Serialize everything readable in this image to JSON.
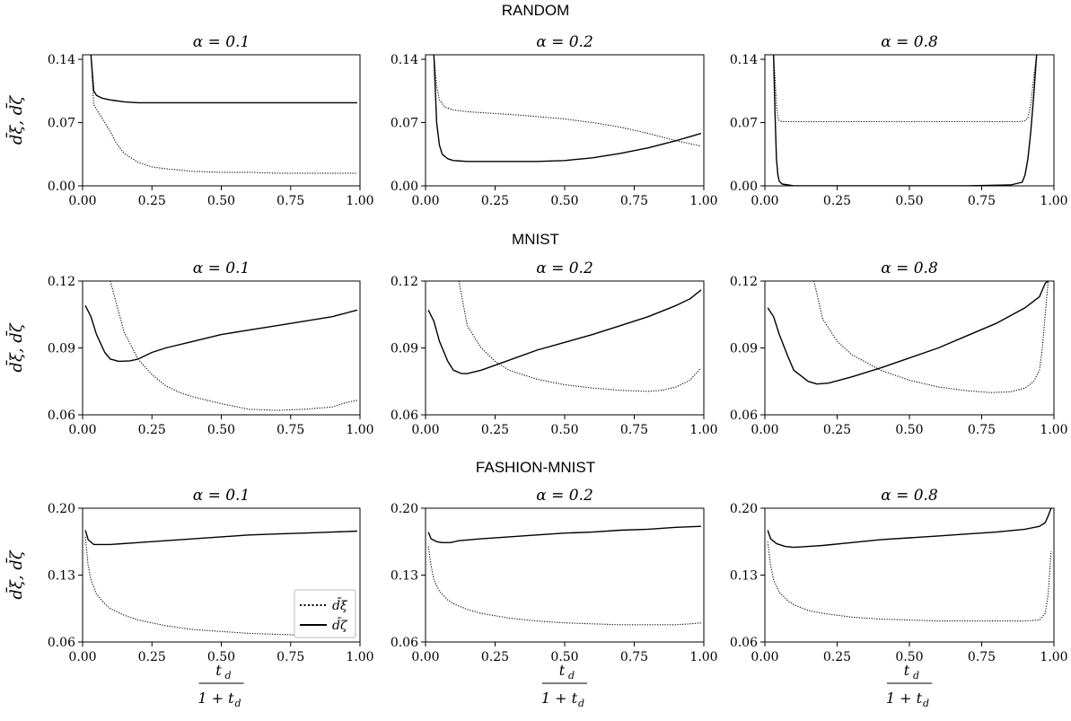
{
  "row_titles": [
    "RANDOM",
    "MNIST",
    "FASHION-MNIST"
  ],
  "ylabel": "d̄ξ, d̄ζ",
  "xlabel": {
    "numerator": "t",
    "numerator_sub": "d",
    "denominator": "1 + t",
    "denominator_sub": "d"
  },
  "legend": {
    "dotted": "d̄ξ",
    "solid": "d̄ζ"
  },
  "chart_data": [
    {
      "type": "line",
      "row": "RANDOM",
      "title": "α = 0.1",
      "xlim": [
        0,
        1
      ],
      "ylim": [
        0,
        0.145
      ],
      "xticks": [
        "0.00",
        "0.25",
        "0.50",
        "0.75",
        "1.00"
      ],
      "yticks": [
        "0.00",
        "0.07",
        "0.14"
      ],
      "series": [
        {
          "name": "d̄ξ",
          "style": "dotted",
          "x": [
            0.03,
            0.04,
            0.06,
            0.08,
            0.1,
            0.12,
            0.15,
            0.2,
            0.25,
            0.3,
            0.4,
            0.5,
            0.6,
            0.7,
            0.8,
            0.9,
            0.99
          ],
          "y": [
            0.145,
            0.09,
            0.08,
            0.07,
            0.06,
            0.048,
            0.036,
            0.026,
            0.021,
            0.019,
            0.016,
            0.015,
            0.015,
            0.014,
            0.014,
            0.014,
            0.014
          ]
        },
        {
          "name": "d̄ζ",
          "style": "solid",
          "x": [
            0.03,
            0.04,
            0.05,
            0.07,
            0.1,
            0.15,
            0.2,
            0.3,
            0.5,
            0.7,
            0.99
          ],
          "y": [
            0.145,
            0.105,
            0.1,
            0.097,
            0.095,
            0.093,
            0.092,
            0.092,
            0.092,
            0.092,
            0.092
          ]
        }
      ]
    },
    {
      "type": "line",
      "row": "RANDOM",
      "title": "α = 0.2",
      "xlim": [
        0,
        1
      ],
      "ylim": [
        0,
        0.145
      ],
      "xticks": [
        "0.00",
        "0.25",
        "0.50",
        "0.75",
        "1.00"
      ],
      "yticks": [
        "0.00",
        "0.07",
        "0.14"
      ],
      "series": [
        {
          "name": "d̄ξ",
          "style": "dotted",
          "x": [
            0.03,
            0.04,
            0.05,
            0.07,
            0.1,
            0.15,
            0.25,
            0.35,
            0.5,
            0.6,
            0.7,
            0.8,
            0.9,
            0.99
          ],
          "y": [
            0.145,
            0.11,
            0.095,
            0.087,
            0.084,
            0.082,
            0.08,
            0.078,
            0.074,
            0.07,
            0.065,
            0.058,
            0.05,
            0.044
          ]
        },
        {
          "name": "d̄ζ",
          "style": "solid",
          "x": [
            0.03,
            0.04,
            0.05,
            0.06,
            0.08,
            0.1,
            0.15,
            0.25,
            0.4,
            0.5,
            0.6,
            0.7,
            0.8,
            0.9,
            0.99
          ],
          "y": [
            0.145,
            0.07,
            0.045,
            0.035,
            0.03,
            0.028,
            0.027,
            0.027,
            0.027,
            0.028,
            0.031,
            0.036,
            0.042,
            0.05,
            0.058
          ]
        }
      ]
    },
    {
      "type": "line",
      "row": "RANDOM",
      "title": "α = 0.8",
      "xlim": [
        0,
        1
      ],
      "ylim": [
        0,
        0.145
      ],
      "xticks": [
        "0.00",
        "0.25",
        "0.50",
        "0.75",
        "1.00"
      ],
      "yticks": [
        "0.00",
        "0.07",
        "0.14"
      ],
      "series": [
        {
          "name": "d̄ξ",
          "style": "dotted",
          "x": [
            0.03,
            0.035,
            0.04,
            0.045,
            0.05,
            0.06,
            0.1,
            0.2,
            0.4,
            0.6,
            0.8,
            0.88,
            0.9,
            0.91,
            0.92,
            0.93,
            0.94
          ],
          "y": [
            0.145,
            0.12,
            0.09,
            0.075,
            0.072,
            0.071,
            0.071,
            0.071,
            0.071,
            0.071,
            0.071,
            0.071,
            0.072,
            0.075,
            0.09,
            0.12,
            0.145
          ]
        },
        {
          "name": "d̄ζ",
          "style": "solid",
          "x": [
            0.03,
            0.035,
            0.04,
            0.045,
            0.05,
            0.06,
            0.08,
            0.1,
            0.3,
            0.5,
            0.7,
            0.85,
            0.89,
            0.9,
            0.91,
            0.92,
            0.93,
            0.94
          ],
          "y": [
            0.145,
            0.08,
            0.03,
            0.012,
            0.005,
            0.002,
            0.001,
            0,
            0,
            0,
            0,
            0.001,
            0.004,
            0.012,
            0.03,
            0.06,
            0.1,
            0.145
          ]
        }
      ]
    },
    {
      "type": "line",
      "row": "MNIST",
      "title": "α = 0.1",
      "xlim": [
        0,
        1
      ],
      "ylim": [
        0.06,
        0.12
      ],
      "xticks": [
        "0.00",
        "0.25",
        "0.50",
        "0.75",
        "1.00"
      ],
      "yticks": [
        "0.06",
        "0.09",
        "0.12"
      ],
      "series": [
        {
          "name": "d̄ξ",
          "style": "dotted",
          "x": [
            0.1,
            0.15,
            0.2,
            0.25,
            0.3,
            0.35,
            0.4,
            0.5,
            0.6,
            0.7,
            0.8,
            0.9,
            0.95,
            0.99
          ],
          "y": [
            0.12,
            0.097,
            0.085,
            0.078,
            0.073,
            0.07,
            0.068,
            0.065,
            0.0625,
            0.062,
            0.0625,
            0.0635,
            0.0655,
            0.0665
          ]
        },
        {
          "name": "d̄ζ",
          "style": "solid",
          "x": [
            0.01,
            0.03,
            0.05,
            0.08,
            0.1,
            0.13,
            0.17,
            0.2,
            0.25,
            0.3,
            0.4,
            0.5,
            0.6,
            0.7,
            0.8,
            0.9,
            0.99
          ],
          "y": [
            0.109,
            0.104,
            0.096,
            0.088,
            0.085,
            0.084,
            0.0842,
            0.085,
            0.088,
            0.09,
            0.093,
            0.096,
            0.098,
            0.1,
            0.102,
            0.104,
            0.107
          ]
        }
      ]
    },
    {
      "type": "line",
      "row": "MNIST",
      "title": "α = 0.2",
      "xlim": [
        0,
        1
      ],
      "ylim": [
        0.06,
        0.12
      ],
      "xticks": [
        "0.00",
        "0.25",
        "0.50",
        "0.75",
        "1.00"
      ],
      "yticks": [
        "0.06",
        "0.09",
        "0.12"
      ],
      "series": [
        {
          "name": "d̄ξ",
          "style": "dotted",
          "x": [
            0.12,
            0.15,
            0.2,
            0.25,
            0.3,
            0.4,
            0.5,
            0.6,
            0.7,
            0.8,
            0.85,
            0.9,
            0.95,
            0.99
          ],
          "y": [
            0.12,
            0.1,
            0.09,
            0.084,
            0.08,
            0.076,
            0.0735,
            0.072,
            0.071,
            0.0705,
            0.071,
            0.0725,
            0.0755,
            0.081
          ]
        },
        {
          "name": "d̄ζ",
          "style": "solid",
          "x": [
            0.01,
            0.03,
            0.05,
            0.08,
            0.1,
            0.13,
            0.15,
            0.2,
            0.3,
            0.4,
            0.5,
            0.6,
            0.7,
            0.8,
            0.9,
            0.95,
            0.99
          ],
          "y": [
            0.107,
            0.102,
            0.093,
            0.084,
            0.08,
            0.0785,
            0.0785,
            0.08,
            0.0845,
            0.089,
            0.0925,
            0.096,
            0.1,
            0.104,
            0.109,
            0.112,
            0.116
          ]
        }
      ]
    },
    {
      "type": "line",
      "row": "MNIST",
      "title": "α = 0.8",
      "xlim": [
        0,
        1
      ],
      "ylim": [
        0.06,
        0.12
      ],
      "xticks": [
        "0.00",
        "0.25",
        "0.50",
        "0.75",
        "1.00"
      ],
      "yticks": [
        "0.06",
        "0.09",
        "0.12"
      ],
      "series": [
        {
          "name": "d̄ξ",
          "style": "dotted",
          "x": [
            0.17,
            0.2,
            0.25,
            0.3,
            0.4,
            0.5,
            0.6,
            0.7,
            0.78,
            0.85,
            0.9,
            0.93,
            0.95,
            0.96,
            0.97,
            0.98
          ],
          "y": [
            0.12,
            0.103,
            0.093,
            0.087,
            0.08,
            0.0755,
            0.0725,
            0.0708,
            0.07,
            0.0703,
            0.072,
            0.075,
            0.08,
            0.09,
            0.105,
            0.12
          ]
        },
        {
          "name": "d̄ζ",
          "style": "solid",
          "x": [
            0.01,
            0.03,
            0.05,
            0.08,
            0.1,
            0.15,
            0.18,
            0.22,
            0.3,
            0.4,
            0.5,
            0.6,
            0.7,
            0.8,
            0.9,
            0.95,
            0.97,
            0.98
          ],
          "y": [
            0.108,
            0.104,
            0.096,
            0.086,
            0.08,
            0.075,
            0.0738,
            0.0742,
            0.077,
            0.081,
            0.0855,
            0.09,
            0.0955,
            0.101,
            0.108,
            0.113,
            0.119,
            0.12
          ]
        }
      ]
    },
    {
      "type": "line",
      "row": "FASHION-MNIST",
      "title": "α = 0.1",
      "xlim": [
        0,
        1
      ],
      "ylim": [
        0.06,
        0.2
      ],
      "xticks": [
        "0.00",
        "0.25",
        "0.50",
        "0.75",
        "1.00"
      ],
      "yticks": [
        "0.06",
        "0.13",
        "0.20"
      ],
      "legend_position": "lower-right",
      "series": [
        {
          "name": "d̄ξ",
          "style": "dotted",
          "x": [
            0.01,
            0.02,
            0.03,
            0.05,
            0.08,
            0.1,
            0.15,
            0.2,
            0.3,
            0.4,
            0.5,
            0.6,
            0.7,
            0.8,
            0.9,
            0.99
          ],
          "y": [
            0.17,
            0.14,
            0.125,
            0.11,
            0.1,
            0.095,
            0.088,
            0.083,
            0.077,
            0.073,
            0.071,
            0.069,
            0.068,
            0.067,
            0.067,
            0.067
          ]
        },
        {
          "name": "d̄ζ",
          "style": "solid",
          "x": [
            0.01,
            0.02,
            0.04,
            0.06,
            0.1,
            0.2,
            0.3,
            0.4,
            0.5,
            0.6,
            0.7,
            0.8,
            0.9,
            0.99
          ],
          "y": [
            0.177,
            0.167,
            0.162,
            0.162,
            0.162,
            0.164,
            0.166,
            0.168,
            0.17,
            0.172,
            0.173,
            0.174,
            0.175,
            0.176
          ]
        }
      ]
    },
    {
      "type": "line",
      "row": "FASHION-MNIST",
      "title": "α = 0.2",
      "xlim": [
        0,
        1
      ],
      "ylim": [
        0.06,
        0.2
      ],
      "xticks": [
        "0.00",
        "0.25",
        "0.50",
        "0.75",
        "1.00"
      ],
      "yticks": [
        "0.06",
        "0.13",
        "0.20"
      ],
      "series": [
        {
          "name": "d̄ξ",
          "style": "dotted",
          "x": [
            0.01,
            0.02,
            0.03,
            0.05,
            0.08,
            0.1,
            0.15,
            0.2,
            0.3,
            0.4,
            0.5,
            0.6,
            0.7,
            0.8,
            0.9,
            0.95,
            0.99
          ],
          "y": [
            0.16,
            0.14,
            0.125,
            0.113,
            0.104,
            0.1,
            0.094,
            0.09,
            0.085,
            0.082,
            0.08,
            0.079,
            0.078,
            0.078,
            0.078,
            0.079,
            0.08
          ]
        },
        {
          "name": "d̄ζ",
          "style": "solid",
          "x": [
            0.01,
            0.02,
            0.04,
            0.06,
            0.09,
            0.12,
            0.2,
            0.3,
            0.4,
            0.5,
            0.6,
            0.7,
            0.8,
            0.9,
            0.99
          ],
          "y": [
            0.175,
            0.168,
            0.165,
            0.164,
            0.164,
            0.166,
            0.168,
            0.17,
            0.172,
            0.174,
            0.175,
            0.177,
            0.178,
            0.18,
            0.181
          ]
        }
      ]
    },
    {
      "type": "line",
      "row": "FASHION-MNIST",
      "title": "α = 0.8",
      "xlim": [
        0,
        1
      ],
      "ylim": [
        0.06,
        0.2
      ],
      "xticks": [
        "0.00",
        "0.25",
        "0.50",
        "0.75",
        "1.00"
      ],
      "yticks": [
        "0.06",
        "0.13",
        "0.20"
      ],
      "series": [
        {
          "name": "d̄ξ",
          "style": "dotted",
          "x": [
            0.01,
            0.02,
            0.03,
            0.05,
            0.08,
            0.1,
            0.15,
            0.2,
            0.3,
            0.4,
            0.5,
            0.6,
            0.7,
            0.8,
            0.9,
            0.95,
            0.97,
            0.98,
            0.99
          ],
          "y": [
            0.165,
            0.14,
            0.125,
            0.112,
            0.103,
            0.099,
            0.093,
            0.09,
            0.086,
            0.084,
            0.083,
            0.082,
            0.082,
            0.082,
            0.082,
            0.083,
            0.09,
            0.11,
            0.155
          ]
        },
        {
          "name": "d̄ζ",
          "style": "solid",
          "x": [
            0.01,
            0.02,
            0.04,
            0.07,
            0.1,
            0.15,
            0.2,
            0.3,
            0.4,
            0.5,
            0.6,
            0.7,
            0.8,
            0.9,
            0.95,
            0.97,
            0.98,
            0.99
          ],
          "y": [
            0.177,
            0.168,
            0.163,
            0.16,
            0.159,
            0.16,
            0.161,
            0.164,
            0.167,
            0.169,
            0.171,
            0.173,
            0.175,
            0.178,
            0.181,
            0.185,
            0.192,
            0.2
          ]
        }
      ]
    }
  ]
}
